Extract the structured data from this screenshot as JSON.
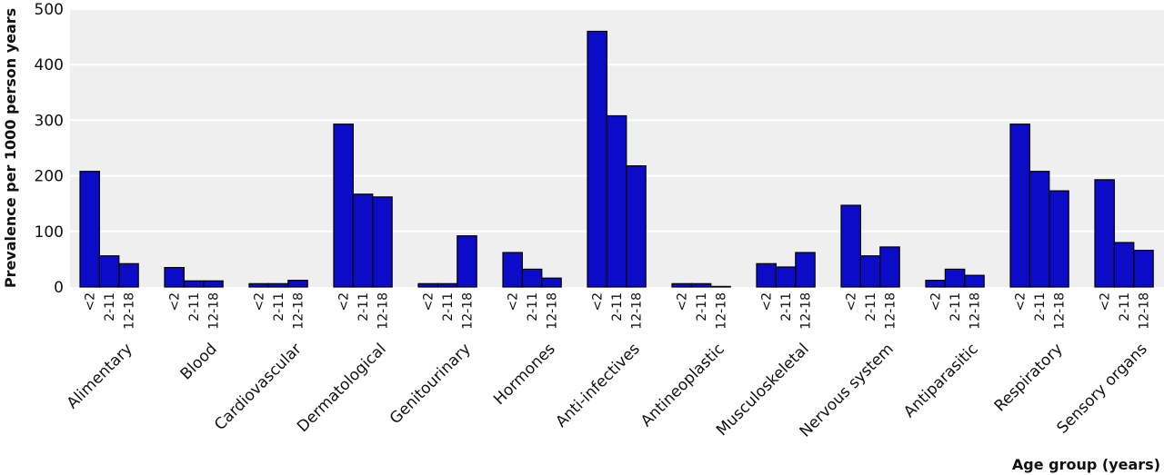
{
  "chart_data": {
    "type": "bar",
    "title": "",
    "xlabel": "Age group (years)",
    "ylabel": "Prevalence per 1000 person years",
    "ylim": [
      0,
      500
    ],
    "yticks": [
      0,
      100,
      200,
      300,
      400,
      500
    ],
    "grid": true,
    "bar_color": "#0c0cc8",
    "plot_background": "#efefef",
    "categories": [
      "Alimentary",
      "Blood",
      "Cardiovascular",
      "Dermatological",
      "Genitourinary",
      "Hormones",
      "Anti-infectives",
      "Antineoplastic",
      "Musculoskeletal",
      "Nervous system",
      "Antiparasitic",
      "Respiratory",
      "Sensory organs"
    ],
    "age_groups": [
      "<2",
      "2-11",
      "12-18"
    ],
    "series": [
      {
        "name": "<2",
        "values": [
          208,
          35,
          6,
          293,
          6,
          62,
          460,
          6,
          42,
          147,
          12,
          293,
          193
        ]
      },
      {
        "name": "2-11",
        "values": [
          56,
          11,
          6,
          167,
          6,
          32,
          308,
          6,
          36,
          56,
          32,
          208,
          80
        ]
      },
      {
        "name": "12-18",
        "values": [
          42,
          11,
          12,
          162,
          92,
          16,
          218,
          1,
          62,
          72,
          21,
          173,
          66
        ]
      }
    ]
  }
}
